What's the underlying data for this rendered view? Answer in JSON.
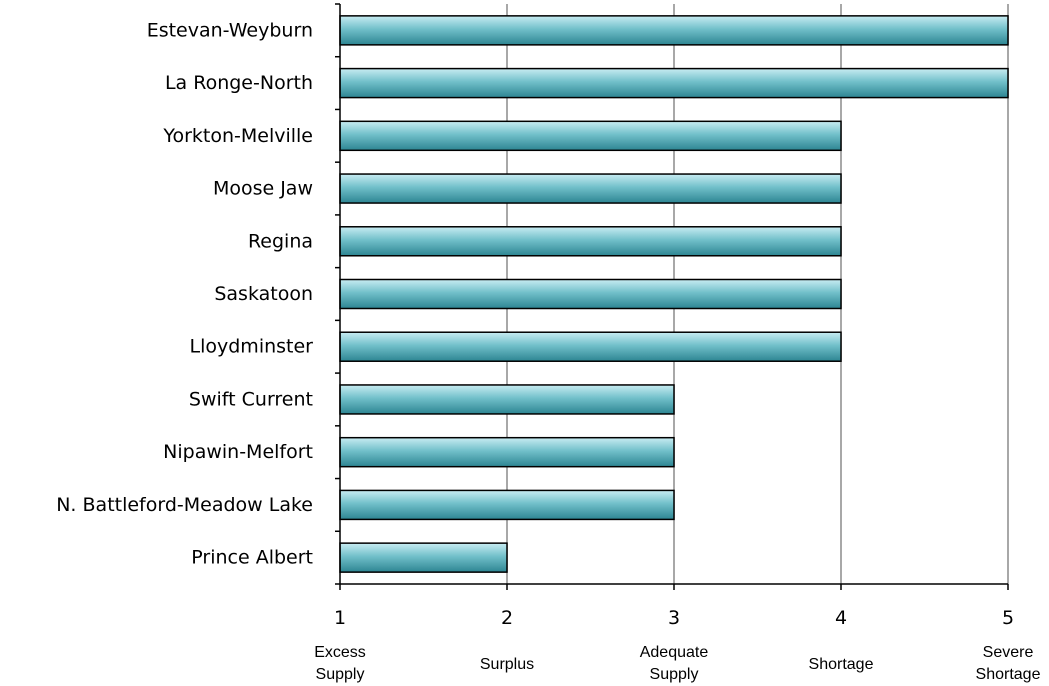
{
  "chart_data": {
    "type": "bar",
    "orientation": "horizontal",
    "categories": [
      "Estevan-Weyburn",
      "La Ronge-North",
      "Yorkton-Melville",
      "Moose Jaw",
      "Regina",
      "Saskatoon",
      "Lloydminster",
      "Swift Current",
      "Nipawin-Melfort",
      "N. Battleford-Meadow Lake",
      "Prince Albert"
    ],
    "values": [
      5,
      5,
      4,
      4,
      4,
      4,
      4,
      3,
      3,
      3,
      2
    ],
    "xlim": [
      1,
      5
    ],
    "x_ticks": [
      {
        "value": 1,
        "label": "1",
        "desc": [
          "Excess",
          "Supply"
        ]
      },
      {
        "value": 2,
        "label": "2",
        "desc": [
          "Surplus"
        ]
      },
      {
        "value": 3,
        "label": "3",
        "desc": [
          "Adequate",
          "Supply"
        ]
      },
      {
        "value": 4,
        "label": "4",
        "desc": [
          "Shortage"
        ]
      },
      {
        "value": 5,
        "label": "5",
        "desc": [
          "Severe",
          "Shortage"
        ]
      }
    ],
    "grid": true,
    "legend": "none",
    "colors": {
      "bar_light": "#c8ecf2",
      "bar_mid": "#72c0ca",
      "bar_dark": "#2d8592",
      "bar_stroke": "#000000",
      "grid": "#8c8c8c",
      "axis": "#000000"
    }
  }
}
